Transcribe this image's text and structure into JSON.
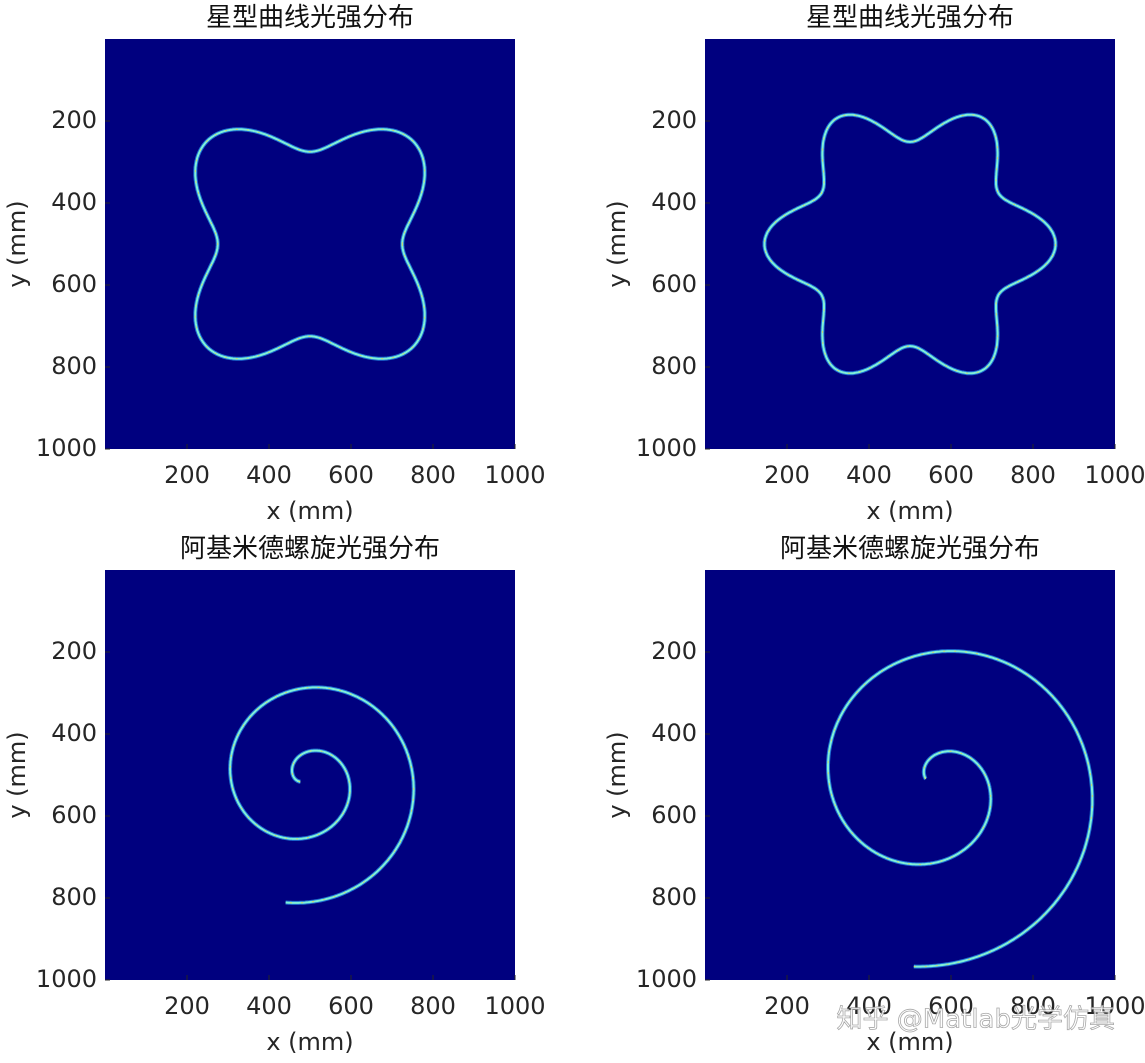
{
  "chart_data": [
    {
      "type": "heatmap",
      "title": "星型曲线光强分布",
      "xlabel": "x (mm)",
      "ylabel": "y (mm)",
      "xlim": [
        0,
        1000
      ],
      "ylim": [
        0,
        1000
      ],
      "y_direction": "reverse",
      "xticks": [
        200,
        400,
        600,
        800,
        1000
      ],
      "yticks": [
        200,
        400,
        600,
        800,
        1000
      ],
      "color": "#00007f"
    },
    {
      "type": "heatmap",
      "title": "星型曲线光强分布",
      "xlabel": "x (mm)",
      "ylabel": "y (mm)",
      "xlim": [
        0,
        1000
      ],
      "ylim": [
        0,
        1000
      ],
      "y_direction": "reverse",
      "xticks": [
        200,
        400,
        600,
        800,
        1000
      ],
      "yticks": [
        200,
        400,
        600,
        800,
        1000
      ],
      "color": "#00007f"
    },
    {
      "type": "heatmap",
      "title": "阿基米德螺旋光强分布",
      "xlabel": "x (mm)",
      "ylabel": "y (mm)",
      "xlim": [
        0,
        1000
      ],
      "ylim": [
        0,
        1000
      ],
      "y_direction": "reverse",
      "xticks": [
        200,
        400,
        600,
        800,
        1000
      ],
      "yticks": [
        200,
        400,
        600,
        800,
        1000
      ],
      "color": "#00007f"
    },
    {
      "type": "heatmap",
      "title": "阿基米德螺旋光强分布",
      "xlabel": "x (mm)",
      "ylabel": "y (mm)",
      "xlim": [
        0,
        1000
      ],
      "ylim": [
        0,
        1000
      ],
      "y_direction": "reverse",
      "xticks": [
        200,
        400,
        600,
        800,
        1000
      ],
      "yticks": [
        200,
        400,
        600,
        800,
        1000
      ],
      "color": "#00007f"
    }
  ],
  "watermark": "知乎 @Matlab光学仿真"
}
